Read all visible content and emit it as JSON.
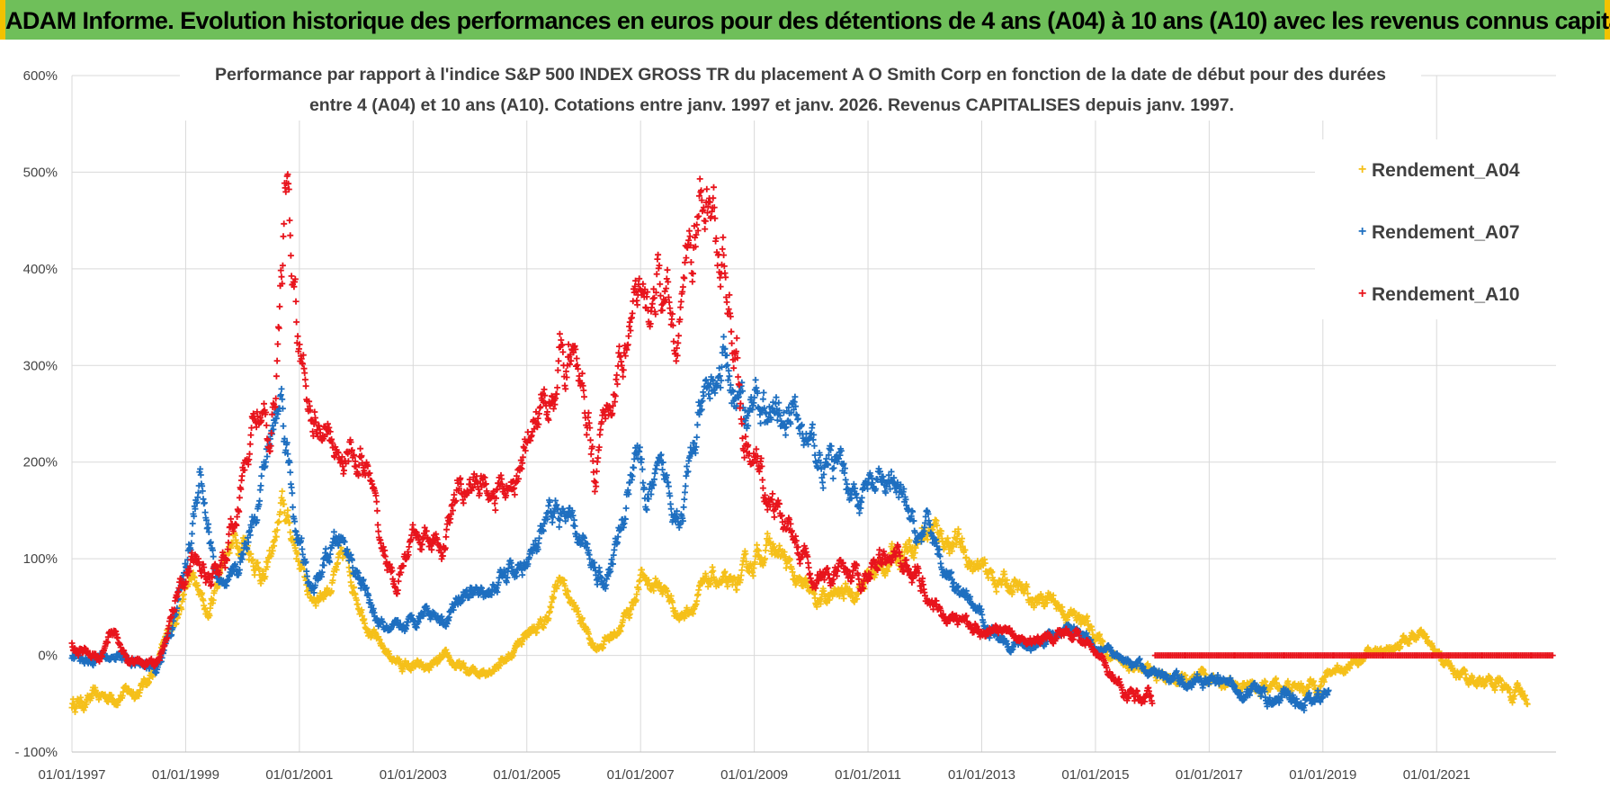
{
  "banner": {
    "title": "ADAM Informe. Evolution historique des performances en euros pour des détentions de 4 ans (A04) à 10 ans (A10) avec les revenus connus capitalisés"
  },
  "colors": {
    "banner_bg": "#6fbf5a",
    "banner_edge": "#f2c200",
    "frame": "#9ccc7a",
    "A04": "#f5c01a",
    "A07": "#1e6fc0",
    "A10": "#e8141c",
    "grid": "#d9d9d9"
  },
  "chart_data": {
    "type": "scatter",
    "title_lines": [
      "Performance par rapport à l'indice S&P 500 INDEX GROSS TR  du placement A O Smith Corp en fonction de la date de début pour des durées",
      "entre 4 (A04) et 10 ans (A10).  Cotations entre janv. 1997 et janv. 2026. Revenus CAPITALISES  depuis janv. 1997."
    ],
    "x_tick_labels": [
      "01/01/1997",
      "01/01/1999",
      "01/01/2001",
      "01/01/2003",
      "01/01/2005",
      "01/01/2007",
      "01/01/2009",
      "01/01/2011",
      "01/01/2013",
      "01/01/2015",
      "01/01/2017",
      "01/01/2019",
      "01/01/2021"
    ],
    "x_ticks_years": [
      1997,
      1999,
      2001,
      2003,
      2005,
      2007,
      2009,
      2011,
      2013,
      2015,
      2017,
      2019,
      2021
    ],
    "xlim": [
      1997,
      2023.1
    ],
    "y_tick_labels": [
      "- 100%",
      "0%",
      "100%",
      "200%",
      "300%",
      "400%",
      "500%",
      "600%"
    ],
    "y_ticks": [
      -100,
      0,
      100,
      200,
      300,
      400,
      500,
      600
    ],
    "ylim": [
      -100,
      600
    ],
    "grid": true,
    "legend_position": "top-right",
    "marker": "+",
    "series": [
      {
        "name": "Rendement_A04",
        "color": "#f5c01a",
        "keypoints": [
          [
            1997.0,
            -50
          ],
          [
            1997.4,
            -45
          ],
          [
            1997.8,
            -40
          ],
          [
            1998.2,
            -35
          ],
          [
            1998.5,
            -10
          ],
          [
            1998.8,
            40
          ],
          [
            1999.1,
            80
          ],
          [
            1999.4,
            40
          ],
          [
            1999.7,
            110
          ],
          [
            2000.0,
            125
          ],
          [
            2000.4,
            80
          ],
          [
            2000.7,
            150
          ],
          [
            2000.9,
            120
          ],
          [
            2001.2,
            60
          ],
          [
            2001.5,
            70
          ],
          [
            2001.8,
            100
          ],
          [
            2002.1,
            50
          ],
          [
            2002.4,
            10
          ],
          [
            2002.8,
            -10
          ],
          [
            2003.2,
            -15
          ],
          [
            2003.6,
            -5
          ],
          [
            2004.0,
            -20
          ],
          [
            2004.4,
            -10
          ],
          [
            2004.7,
            0
          ],
          [
            2005.0,
            25
          ],
          [
            2005.3,
            30
          ],
          [
            2005.6,
            80
          ],
          [
            2005.9,
            40
          ],
          [
            2006.2,
            10
          ],
          [
            2006.5,
            20
          ],
          [
            2006.8,
            45
          ],
          [
            2007.0,
            80
          ],
          [
            2007.4,
            70
          ],
          [
            2007.7,
            40
          ],
          [
            2008.0,
            60
          ],
          [
            2008.3,
            80
          ],
          [
            2008.6,
            65
          ],
          [
            2008.9,
            90
          ],
          [
            2009.2,
            115
          ],
          [
            2009.5,
            100
          ],
          [
            2009.8,
            70
          ],
          [
            2010.1,
            55
          ],
          [
            2010.4,
            60
          ],
          [
            2010.8,
            70
          ],
          [
            2011.2,
            90
          ],
          [
            2011.6,
            110
          ],
          [
            2012.0,
            130
          ],
          [
            2012.3,
            125
          ],
          [
            2012.6,
            115
          ],
          [
            2012.9,
            90
          ],
          [
            2013.2,
            80
          ],
          [
            2013.6,
            70
          ],
          [
            2013.9,
            55
          ],
          [
            2014.2,
            60
          ],
          [
            2014.5,
            45
          ],
          [
            2014.9,
            30
          ],
          [
            2015.2,
            5
          ],
          [
            2015.6,
            -10
          ],
          [
            2016.0,
            -20
          ],
          [
            2016.4,
            -25
          ],
          [
            2016.8,
            -30
          ],
          [
            2017.2,
            -25
          ],
          [
            2017.6,
            -30
          ],
          [
            2017.9,
            -35
          ],
          [
            2018.2,
            -30
          ],
          [
            2018.5,
            -35
          ],
          [
            2018.9,
            -30
          ],
          [
            2019.2,
            -15
          ],
          [
            2019.6,
            -5
          ],
          [
            2020.0,
            5
          ],
          [
            2020.4,
            15
          ],
          [
            2020.7,
            20
          ],
          [
            2021.0,
            0
          ],
          [
            2021.4,
            -20
          ],
          [
            2021.8,
            -25
          ],
          [
            2022.1,
            -30
          ],
          [
            2022.3,
            -40
          ],
          [
            2022.6,
            -45
          ]
        ]
      },
      {
        "name": "Rendement_A07",
        "color": "#1e6fc0",
        "keypoints": [
          [
            1997.0,
            0
          ],
          [
            1997.4,
            -5
          ],
          [
            1997.8,
            0
          ],
          [
            1998.2,
            -10
          ],
          [
            1998.5,
            -15
          ],
          [
            1998.8,
            40
          ],
          [
            1999.1,
            120
          ],
          [
            1999.25,
            200
          ],
          [
            1999.5,
            90
          ],
          [
            1999.7,
            60
          ],
          [
            2000.0,
            100
          ],
          [
            2000.4,
            200
          ],
          [
            2000.7,
            270
          ],
          [
            2000.9,
            150
          ],
          [
            2001.2,
            60
          ],
          [
            2001.5,
            100
          ],
          [
            2001.7,
            120
          ],
          [
            2002.0,
            90
          ],
          [
            2002.3,
            40
          ],
          [
            2002.6,
            20
          ],
          [
            2002.9,
            30
          ],
          [
            2003.2,
            50
          ],
          [
            2003.6,
            40
          ],
          [
            2003.9,
            70
          ],
          [
            2004.2,
            60
          ],
          [
            2004.6,
            80
          ],
          [
            2004.9,
            90
          ],
          [
            2005.2,
            110
          ],
          [
            2005.5,
            150
          ],
          [
            2005.8,
            130
          ],
          [
            2006.1,
            100
          ],
          [
            2006.4,
            80
          ],
          [
            2006.7,
            140
          ],
          [
            2006.9,
            220
          ],
          [
            2007.1,
            160
          ],
          [
            2007.4,
            180
          ],
          [
            2007.7,
            150
          ],
          [
            2008.0,
            230
          ],
          [
            2008.3,
            280
          ],
          [
            2008.5,
            300
          ],
          [
            2008.8,
            250
          ],
          [
            2009.0,
            270
          ],
          [
            2009.3,
            240
          ],
          [
            2009.6,
            260
          ],
          [
            2009.9,
            220
          ],
          [
            2010.2,
            200
          ],
          [
            2010.5,
            190
          ],
          [
            2010.8,
            165
          ],
          [
            2011.1,
            170
          ],
          [
            2011.4,
            180
          ],
          [
            2011.7,
            140
          ],
          [
            2011.9,
            120
          ],
          [
            2012.1,
            130
          ],
          [
            2012.3,
            100
          ],
          [
            2012.6,
            60
          ],
          [
            2012.9,
            45
          ],
          [
            2013.2,
            25
          ],
          [
            2013.5,
            15
          ],
          [
            2013.8,
            10
          ],
          [
            2014.1,
            15
          ],
          [
            2014.4,
            25
          ],
          [
            2014.7,
            30
          ],
          [
            2015.0,
            15
          ],
          [
            2015.3,
            0
          ],
          [
            2015.6,
            -10
          ],
          [
            2016.0,
            -15
          ],
          [
            2016.3,
            -20
          ],
          [
            2016.6,
            -25
          ],
          [
            2017.0,
            -28
          ],
          [
            2017.4,
            -30
          ],
          [
            2017.8,
            -40
          ],
          [
            2018.2,
            -50
          ],
          [
            2018.5,
            -45
          ],
          [
            2018.8,
            -45
          ],
          [
            2019.1,
            -40
          ]
        ]
      },
      {
        "name": "Rendement_A10",
        "color": "#e8141c",
        "keypoints": [
          [
            1997.0,
            10
          ],
          [
            1997.3,
            0
          ],
          [
            1997.5,
            -5
          ],
          [
            1997.7,
            30
          ],
          [
            1998.0,
            -10
          ],
          [
            1998.3,
            -5
          ],
          [
            1998.6,
            0
          ],
          [
            1998.9,
            80
          ],
          [
            1999.1,
            100
          ],
          [
            1999.4,
            80
          ],
          [
            1999.7,
            100
          ],
          [
            2000.0,
            180
          ],
          [
            2000.3,
            270
          ],
          [
            2000.5,
            200
          ],
          [
            2000.7,
            400
          ],
          [
            2000.75,
            500
          ],
          [
            2000.85,
            400
          ],
          [
            2001.0,
            300
          ],
          [
            2001.3,
            250
          ],
          [
            2001.6,
            220
          ],
          [
            2001.9,
            210
          ],
          [
            2002.2,
            190
          ],
          [
            2002.4,
            120
          ],
          [
            2002.7,
            70
          ],
          [
            2002.9,
            110
          ],
          [
            2003.2,
            120
          ],
          [
            2003.5,
            110
          ],
          [
            2003.8,
            170
          ],
          [
            2004.1,
            180
          ],
          [
            2004.4,
            175
          ],
          [
            2004.7,
            170
          ],
          [
            2005.0,
            210
          ],
          [
            2005.3,
            260
          ],
          [
            2005.5,
            300
          ],
          [
            2005.7,
            320
          ],
          [
            2006.0,
            270
          ],
          [
            2006.2,
            200
          ],
          [
            2006.4,
            240
          ],
          [
            2006.6,
            300
          ],
          [
            2006.9,
            360
          ],
          [
            2007.1,
            340
          ],
          [
            2007.3,
            380
          ],
          [
            2007.6,
            330
          ],
          [
            2007.9,
            420
          ],
          [
            2008.1,
            470
          ],
          [
            2008.3,
            440
          ],
          [
            2008.5,
            390
          ],
          [
            2008.7,
            320
          ],
          [
            2008.8,
            220
          ],
          [
            2009.0,
            200
          ],
          [
            2009.2,
            170
          ],
          [
            2009.4,
            150
          ],
          [
            2009.7,
            120
          ],
          [
            2010.0,
            90
          ],
          [
            2010.3,
            75
          ],
          [
            2010.6,
            80
          ],
          [
            2010.9,
            80
          ],
          [
            2011.2,
            100
          ],
          [
            2011.5,
            100
          ],
          [
            2011.8,
            90
          ],
          [
            2012.1,
            60
          ],
          [
            2012.4,
            40
          ],
          [
            2012.8,
            30
          ],
          [
            2013.1,
            30
          ],
          [
            2013.5,
            20
          ],
          [
            2013.9,
            15
          ],
          [
            2014.3,
            25
          ],
          [
            2014.7,
            20
          ],
          [
            2015.0,
            0
          ],
          [
            2015.3,
            -20
          ],
          [
            2015.6,
            -40
          ],
          [
            2016.0,
            -45
          ]
        ]
      },
      {
        "name": "Rendement_A10_flat",
        "color": "#e8141c",
        "flat_segment": {
          "x_start": 2016.05,
          "x_end": 2023.05,
          "y": 0
        }
      }
    ]
  },
  "legend": {
    "items": [
      {
        "label": "Rendement_A04",
        "color": "#f5c01a"
      },
      {
        "label": "Rendement_A07",
        "color": "#1e6fc0"
      },
      {
        "label": "Rendement_A10",
        "color": "#e8141c"
      }
    ]
  }
}
